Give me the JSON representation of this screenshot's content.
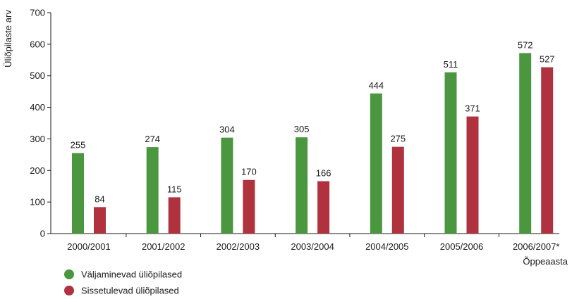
{
  "chart_data": {
    "type": "bar",
    "title": "",
    "xlabel": "Õppeaasta",
    "ylabel": "Üliõpilaste arv",
    "ylim": [
      0,
      700
    ],
    "yticks": [
      0,
      100,
      200,
      300,
      400,
      500,
      600,
      700
    ],
    "grid": false,
    "legend_position": "bottom-left",
    "categories": [
      "2000/2001",
      "2001/2002",
      "2002/2003",
      "2003/2004",
      "2004/2005",
      "2005/2006",
      "2006/2007*"
    ],
    "series": [
      {
        "name": "Väljaminevad üliõpilased",
        "color": "#4a973f",
        "values": [
          255,
          274,
          304,
          305,
          444,
          511,
          572
        ]
      },
      {
        "name": "Sissetulevad üliõpilased",
        "color": "#b1323f",
        "values": [
          84,
          115,
          170,
          166,
          275,
          371,
          527
        ]
      }
    ]
  }
}
